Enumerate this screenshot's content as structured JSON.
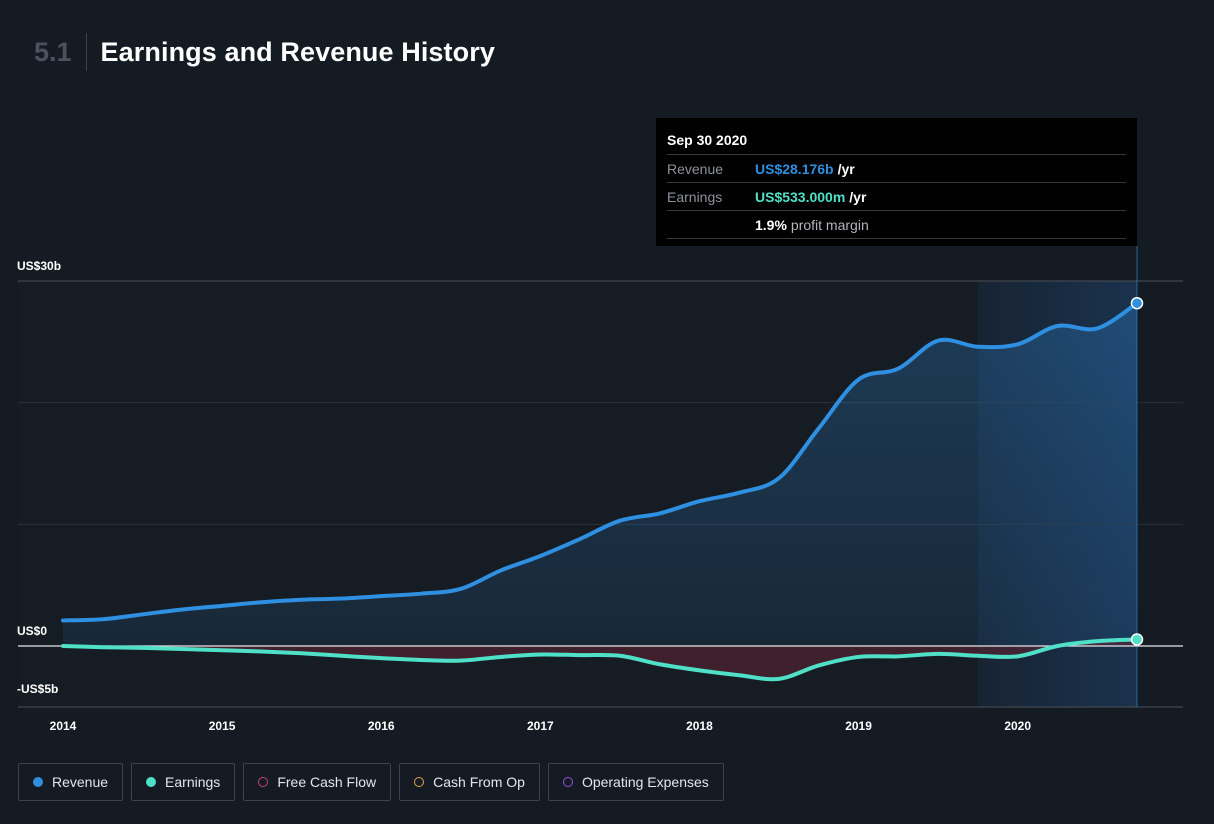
{
  "header": {
    "section_number": "5.1",
    "title": "Earnings and Revenue History"
  },
  "tooltip": {
    "date": "Sep 30 2020",
    "revenue_label": "Revenue",
    "revenue_value": "US$28.176b",
    "revenue_unit": "/yr",
    "earnings_label": "Earnings",
    "earnings_value": "US$533.000m",
    "earnings_unit": "/yr",
    "margin_value": "1.9%",
    "margin_text": "profit margin"
  },
  "legend": [
    {
      "label": "Revenue",
      "color": "#2f8fe0",
      "style": "filled"
    },
    {
      "label": "Earnings",
      "color": "#4fe0c7",
      "style": "filled"
    },
    {
      "label": "Free Cash Flow",
      "color": "#c8446f",
      "style": "hollow"
    },
    {
      "label": "Cash From Op",
      "color": "#e0a04a",
      "style": "hollow"
    },
    {
      "label": "Operating Expenses",
      "color": "#9b4fe0",
      "style": "hollow"
    }
  ],
  "colors": {
    "background": "#151b23",
    "revenue": "#2f8fe0",
    "earnings": "#4fe0c7",
    "negative_fill": "#5a2432",
    "highlight_band": "#1b3350"
  },
  "chart_data": {
    "type": "area",
    "ylim": [
      -5,
      30
    ],
    "ytick_labels": [
      "US$30b",
      "US$0",
      "-US$5b"
    ],
    "ytick_values": [
      30,
      0,
      -5
    ],
    "xlim": [
      2014.0,
      2020.75
    ],
    "xtick_labels": [
      "2014",
      "2015",
      "2016",
      "2017",
      "2018",
      "2019",
      "2020"
    ],
    "xtick_values": [
      2014,
      2015,
      2016,
      2017,
      2018,
      2019,
      2020
    ],
    "grid": true,
    "highlight_range": [
      2019.75,
      2020.75
    ],
    "legend_position": "bottom-left",
    "series": [
      {
        "name": "Revenue",
        "x": [
          2014.0,
          2014.25,
          2014.5,
          2014.75,
          2015.0,
          2015.25,
          2015.5,
          2015.75,
          2016.0,
          2016.25,
          2016.5,
          2016.75,
          2017.0,
          2017.25,
          2017.5,
          2017.75,
          2018.0,
          2018.25,
          2018.5,
          2018.75,
          2019.0,
          2019.25,
          2019.5,
          2019.75,
          2020.0,
          2020.25,
          2020.5,
          2020.75
        ],
        "values": [
          2.1,
          2.2,
          2.6,
          3.0,
          3.3,
          3.6,
          3.8,
          3.9,
          4.1,
          4.3,
          4.7,
          6.2,
          7.4,
          8.8,
          10.3,
          10.9,
          11.9,
          12.6,
          13.8,
          17.9,
          21.9,
          22.8,
          25.1,
          24.6,
          24.8,
          26.3,
          26.1,
          28.176
        ]
      },
      {
        "name": "Earnings",
        "x": [
          2014.0,
          2014.25,
          2014.5,
          2014.75,
          2015.0,
          2015.25,
          2015.5,
          2015.75,
          2016.0,
          2016.25,
          2016.5,
          2016.75,
          2017.0,
          2017.25,
          2017.5,
          2017.75,
          2018.0,
          2018.25,
          2018.5,
          2018.75,
          2019.0,
          2019.25,
          2019.5,
          2019.75,
          2020.0,
          2020.25,
          2020.5,
          2020.75
        ],
        "values": [
          0.0,
          -0.1,
          -0.15,
          -0.25,
          -0.35,
          -0.45,
          -0.6,
          -0.8,
          -1.0,
          -1.15,
          -1.2,
          -0.9,
          -0.7,
          -0.75,
          -0.8,
          -1.5,
          -2.0,
          -2.4,
          -2.7,
          -1.6,
          -0.9,
          -0.85,
          -0.65,
          -0.8,
          -0.85,
          0.0,
          0.4,
          0.533
        ]
      }
    ]
  }
}
